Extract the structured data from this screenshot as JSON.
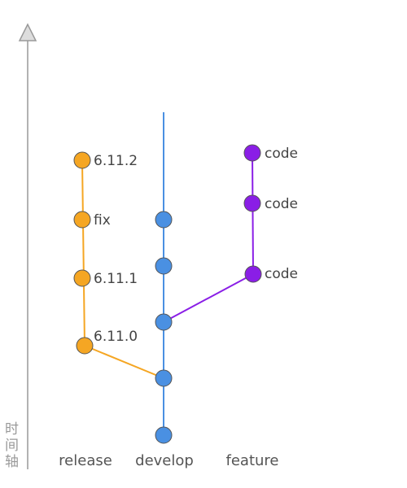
{
  "colors": {
    "release": "#f5a623",
    "develop": "#4a90e2",
    "feature": "#8a1ee6",
    "axis": "#999999"
  },
  "axis_label": [
    "时",
    "间",
    "轴"
  ],
  "branches": {
    "release": "release",
    "develop": "develop",
    "feature": "feature"
  },
  "release_nodes": [
    "6.11.2",
    "fix",
    "6.11.1",
    "6.11.0"
  ],
  "feature_nodes": [
    "code",
    "code",
    "code"
  ]
}
